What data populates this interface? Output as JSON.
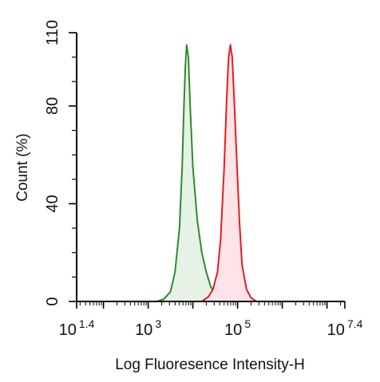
{
  "chart_data": {
    "type": "area",
    "xlabel": "Log Fluoresence Intensity-H",
    "ylabel": "Count  (%)",
    "x_scale": "log",
    "xlim": [
      1.4,
      7.4
    ],
    "ylim": [
      0,
      110
    ],
    "x_ticks": [
      {
        "base": "10",
        "exp": "1.4",
        "value": 1.4
      },
      {
        "base": "10",
        "exp": "3",
        "value": 3
      },
      {
        "base": "10",
        "exp": "5",
        "value": 5
      },
      {
        "base": "10",
        "exp": "7.4",
        "value": 7.4
      }
    ],
    "y_ticks": [
      {
        "label": "0",
        "value": 0
      },
      {
        "label": "40",
        "value": 40
      },
      {
        "label": "80",
        "value": 80
      },
      {
        "label": "110",
        "value": 110
      }
    ],
    "grid": false,
    "legend": "none",
    "series": [
      {
        "color": "#2e8b2e",
        "fill": "#e6f2e6",
        "points": [
          [
            3.2,
            0
          ],
          [
            3.35,
            1
          ],
          [
            3.5,
            4
          ],
          [
            3.6,
            12
          ],
          [
            3.7,
            30
          ],
          [
            3.76,
            55
          ],
          [
            3.8,
            80
          ],
          [
            3.83,
            96
          ],
          [
            3.86,
            105
          ],
          [
            3.9,
            100
          ],
          [
            3.94,
            80
          ],
          [
            4.0,
            55
          ],
          [
            4.1,
            33
          ],
          [
            4.2,
            20
          ],
          [
            4.3,
            12
          ],
          [
            4.4,
            6
          ],
          [
            4.55,
            1.5
          ],
          [
            4.65,
            0
          ]
        ]
      },
      {
        "color": "#e81c1c",
        "fill": "#fde4e8",
        "points": [
          [
            4.2,
            0
          ],
          [
            4.35,
            2
          ],
          [
            4.45,
            5
          ],
          [
            4.55,
            12
          ],
          [
            4.62,
            25
          ],
          [
            4.7,
            55
          ],
          [
            4.76,
            85
          ],
          [
            4.8,
            100
          ],
          [
            4.84,
            105
          ],
          [
            4.88,
            100
          ],
          [
            4.93,
            80
          ],
          [
            5.0,
            50
          ],
          [
            5.05,
            30
          ],
          [
            5.1,
            15
          ],
          [
            5.2,
            5
          ],
          [
            5.3,
            1.5
          ],
          [
            5.42,
            0
          ]
        ]
      }
    ]
  }
}
